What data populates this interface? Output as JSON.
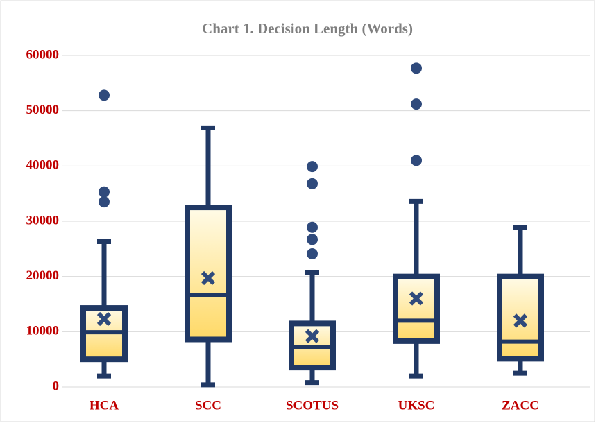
{
  "chart_data": {
    "type": "box",
    "title": "Chart 1. Decision Length (Words)",
    "categories": [
      "HCA",
      "SCC",
      "SCOTUS",
      "UKSC",
      "ZACC"
    ],
    "boxes": [
      {
        "min": 2000,
        "q1": 5000,
        "median": 9900,
        "q3": 14300,
        "max": 26300,
        "mean": 12300,
        "outliers": [
          52800,
          35300,
          33500
        ]
      },
      {
        "min": 400,
        "q1": 8600,
        "median": 16700,
        "q3": 32500,
        "max": 46900,
        "mean": 19700,
        "outliers": []
      },
      {
        "min": 800,
        "q1": 3500,
        "median": 7200,
        "q3": 11500,
        "max": 20700,
        "mean": 9200,
        "outliers": [
          39900,
          36800,
          28900,
          26700,
          24100
        ]
      },
      {
        "min": 2000,
        "q1": 8300,
        "median": 12000,
        "q3": 20000,
        "max": 33600,
        "mean": 16000,
        "outliers": [
          57700,
          51200,
          41000
        ]
      },
      {
        "min": 2500,
        "q1": 5100,
        "median": 8200,
        "q3": 20000,
        "max": 28900,
        "mean": 12000,
        "outliers": []
      }
    ],
    "color": "#203864",
    "outlier_color": "#2f4a7c",
    "ylim": [
      0,
      60000
    ],
    "yticks": [
      0,
      10000,
      20000,
      30000,
      40000,
      50000,
      60000
    ],
    "grid": true
  }
}
